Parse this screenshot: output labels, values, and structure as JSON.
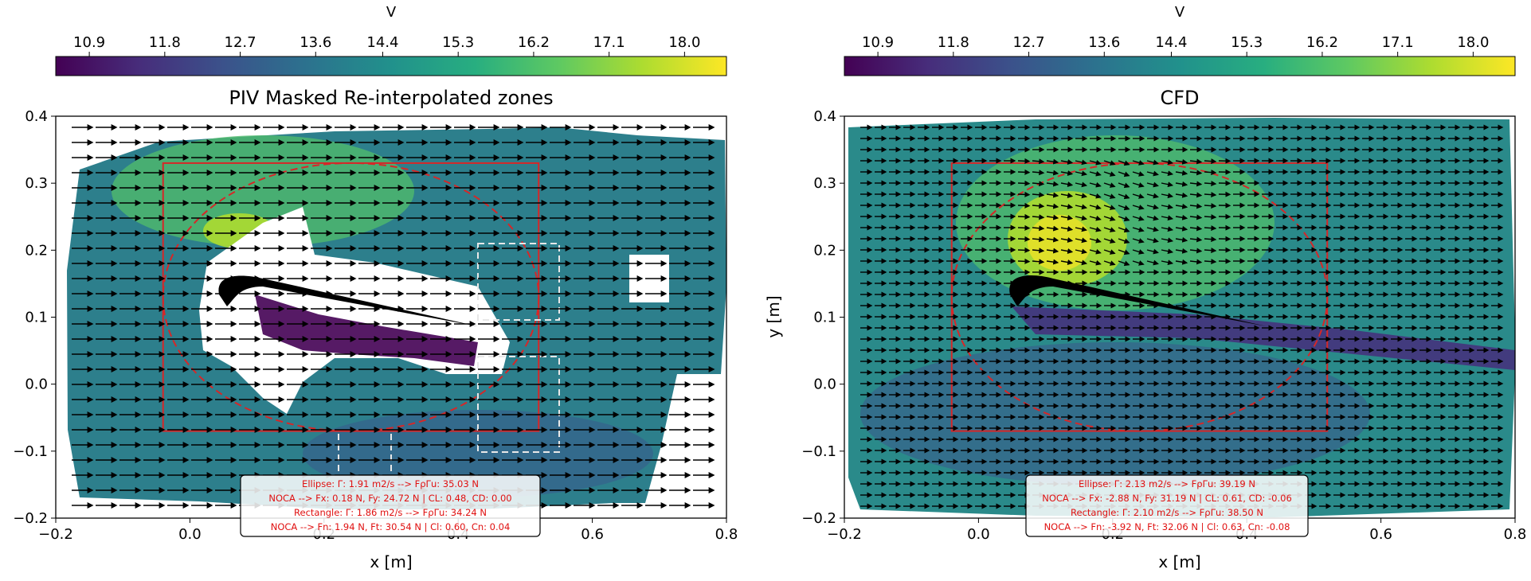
{
  "chart_data": [
    {
      "type": "heatmap",
      "title": "PIV Masked Re-interpolated zones",
      "xlabel": "x [m]",
      "ylabel": "",
      "xlim": [
        -0.2,
        0.8
      ],
      "ylim": [
        -0.2,
        0.4
      ],
      "xticks": [
        "−0.2",
        "0.0",
        "0.2",
        "0.4",
        "0.6",
        "0.8"
      ],
      "yticks": [
        "−0.2",
        "−0.1",
        "0.0",
        "0.1",
        "0.2",
        "0.3",
        "0.4"
      ],
      "colorbar": {
        "label": "V",
        "ticks": [
          "10.9",
          "11.8",
          "12.7",
          "13.6",
          "14.4",
          "15.3",
          "16.2",
          "17.1",
          "18.0"
        ],
        "range": [
          10.5,
          18.5
        ],
        "colormap": "viridis"
      },
      "control_rectangle": {
        "x": [
          -0.04,
          0.52
        ],
        "y": [
          -0.07,
          0.33
        ],
        "color": "#d62728"
      },
      "control_ellipse": {
        "cx": 0.24,
        "cy": 0.13,
        "rx": 0.28,
        "ry": 0.2,
        "color": "#d62728"
      },
      "annotation": {
        "lines": [
          "Ellipse:    Γ: 1.91 m2/s --> FρΓu: 35.03 N",
          "NOCA --> Fx: 0.18 N, Fy: 24.72 N  |  CL: 0.48, CD: 0.00",
          "Rectangle:  Γ: 1.86 m2/s --> FρΓu: 34.24 N",
          "NOCA --> Fn: 1.94 N, Ft: 30.54 N  |  Cl: 0.60, Cn: 0.04"
        ]
      }
    },
    {
      "type": "heatmap",
      "title": "CFD",
      "xlabel": "x [m]",
      "ylabel": "y [m]",
      "xlim": [
        -0.2,
        0.8
      ],
      "ylim": [
        -0.2,
        0.4
      ],
      "xticks": [
        "−0.2",
        "0.0",
        "0.2",
        "0.4",
        "0.6",
        "0.8"
      ],
      "yticks": [
        "−0.2",
        "−0.1",
        "0.0",
        "0.1",
        "0.2",
        "0.3",
        "0.4"
      ],
      "colorbar": {
        "label": "V",
        "ticks": [
          "10.9",
          "11.8",
          "12.7",
          "13.6",
          "14.4",
          "15.3",
          "16.2",
          "17.1",
          "18.0"
        ],
        "range": [
          10.5,
          18.5
        ],
        "colormap": "viridis"
      },
      "control_rectangle": {
        "x": [
          -0.04,
          0.52
        ],
        "y": [
          -0.07,
          0.33
        ],
        "color": "#d62728"
      },
      "control_ellipse": {
        "cx": 0.24,
        "cy": 0.13,
        "rx": 0.28,
        "ry": 0.2,
        "color": "#d62728"
      },
      "annotation": {
        "lines": [
          "Ellipse:    Γ: 2.13 m2/s --> FρΓu: 39.19 N",
          "NOCA --> Fx: -2.88 N, Fy: 31.19 N  |  CL: 0.61, CD: -0.06",
          "Rectangle:  Γ: 2.10 m2/s --> FρΓu: 38.50 N",
          "NOCA --> Fn: -3.92 N, Ft: 32.06 N  |  Cl: 0.63, Cn: -0.08"
        ]
      }
    }
  ]
}
